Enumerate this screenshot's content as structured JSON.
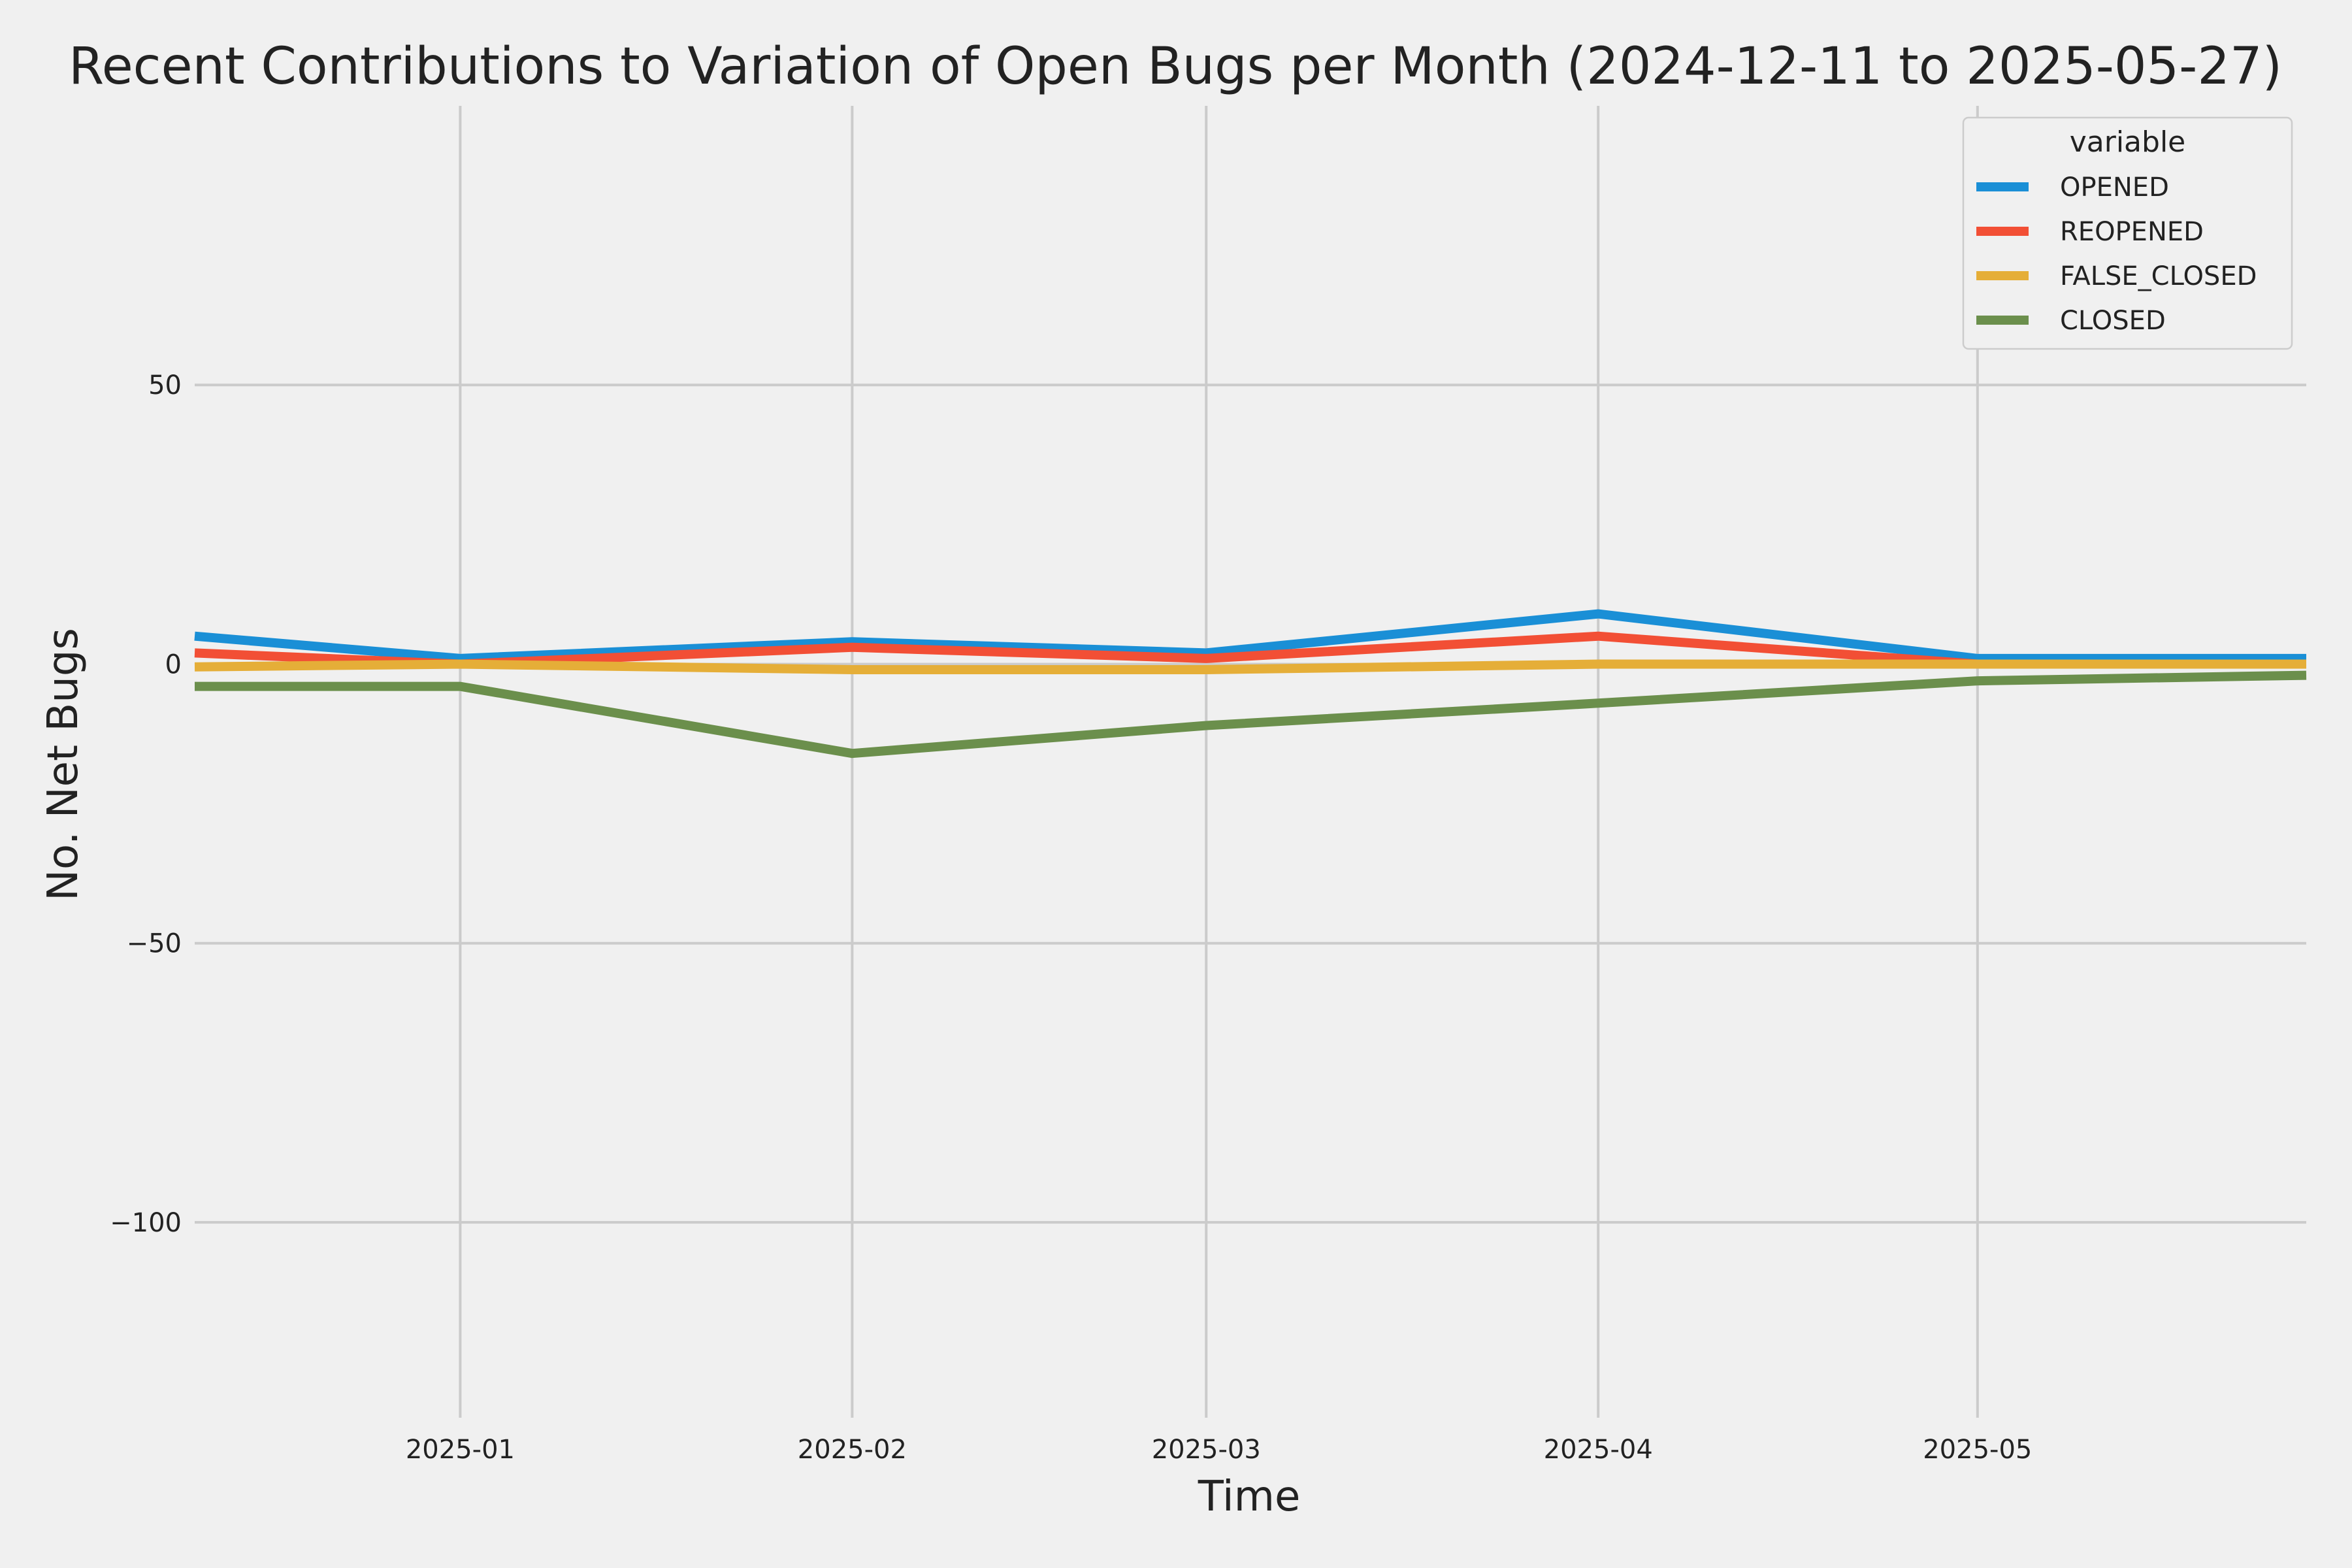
{
  "chart_data": {
    "type": "line",
    "title": "Recent Contributions to Variation of Open Bugs per Month (2024-12-11 to 2025-05-27)",
    "xlabel": "Time",
    "ylabel": "No. Net Bugs",
    "x": [
      "2024-12-11",
      "2025-01-01",
      "2025-02-01",
      "2025-03-01",
      "2025-04-01",
      "2025-05-01",
      "2025-05-27"
    ],
    "x_ticks": [
      "2025-01",
      "2025-02",
      "2025-03",
      "2025-04",
      "2025-05"
    ],
    "y_ticks": [
      50,
      0,
      -50,
      -100
    ],
    "y_tick_labels": [
      "50",
      "0",
      "−50",
      "−100"
    ],
    "xlim": [
      "2024-12-11",
      "2025-05-27"
    ],
    "ylim": [
      -135,
      100
    ],
    "grid": true,
    "legend": {
      "title": "variable",
      "placement": "top-right"
    },
    "series": [
      {
        "name": "OPENED",
        "color": "#1a8fd6",
        "values": [
          5,
          1,
          4,
          2,
          9,
          1,
          1
        ]
      },
      {
        "name": "REOPENED",
        "color": "#f24f35",
        "values": [
          2,
          0,
          3,
          1,
          5,
          0,
          0
        ]
      },
      {
        "name": "FALSE_CLOSED",
        "color": "#e5ae38",
        "values": [
          -0.5,
          0,
          -1,
          -1,
          0,
          0,
          0
        ]
      },
      {
        "name": "CLOSED",
        "color": "#6b8f4c",
        "values": [
          -4,
          -4,
          -16,
          -11,
          -7,
          -3,
          -2
        ]
      }
    ]
  }
}
